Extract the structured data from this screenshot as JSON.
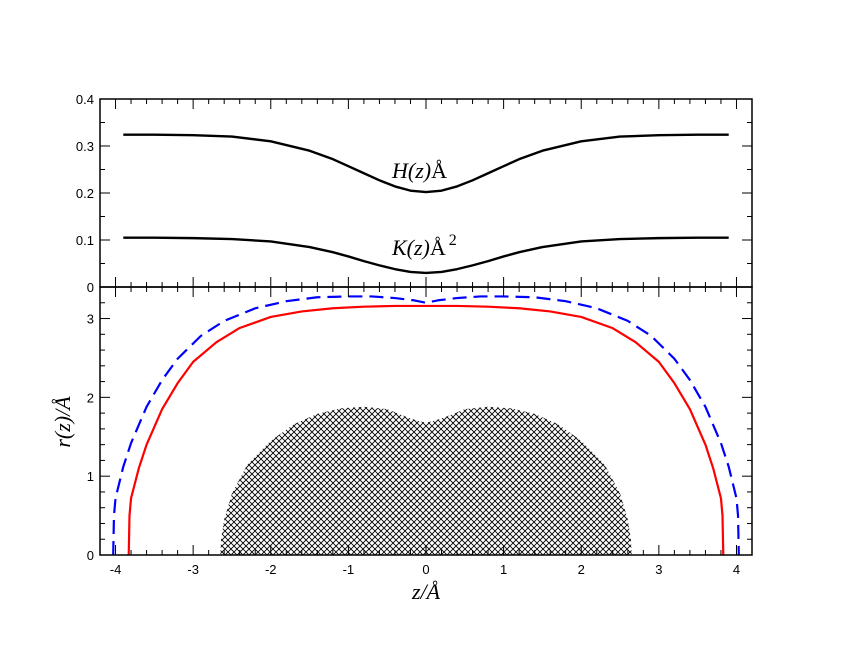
{
  "chart_data": [
    {
      "type": "line",
      "panel": "top",
      "xlim": [
        -4.2,
        4.2
      ],
      "ylim": [
        0,
        0.4
      ],
      "y_ticks": [
        "0",
        "0.1",
        "0.2",
        "0.3",
        "0.4"
      ],
      "grid": false,
      "series": [
        {
          "name": "H(z)Å",
          "label_text": "H(z)",
          "label_unit": "Å",
          "color": "#000000",
          "style": "solid",
          "x": [
            -3.9,
            -3.5,
            -3.0,
            -2.5,
            -2.0,
            -1.5,
            -1.2,
            -1.0,
            -0.8,
            -0.6,
            -0.4,
            -0.2,
            0.0,
            0.2,
            0.4,
            0.6,
            0.8,
            1.0,
            1.2,
            1.5,
            2.0,
            2.5,
            3.0,
            3.5,
            3.9
          ],
          "y": [
            0.324,
            0.324,
            0.323,
            0.32,
            0.31,
            0.29,
            0.272,
            0.257,
            0.242,
            0.227,
            0.214,
            0.205,
            0.202,
            0.205,
            0.214,
            0.227,
            0.242,
            0.257,
            0.272,
            0.29,
            0.31,
            0.32,
            0.323,
            0.324,
            0.324
          ]
        },
        {
          "name": "K(z)Å2",
          "label_text": "K(z)",
          "label_unit": "Å",
          "label_sup": "2",
          "color": "#000000",
          "style": "solid",
          "x": [
            -3.9,
            -3.5,
            -3.0,
            -2.5,
            -2.0,
            -1.5,
            -1.2,
            -1.0,
            -0.8,
            -0.6,
            -0.4,
            -0.2,
            0.0,
            0.2,
            0.4,
            0.6,
            0.8,
            1.0,
            1.2,
            1.5,
            2.0,
            2.5,
            3.0,
            3.5,
            3.9
          ],
          "y": [
            0.105,
            0.105,
            0.104,
            0.102,
            0.097,
            0.085,
            0.074,
            0.065,
            0.055,
            0.046,
            0.038,
            0.032,
            0.03,
            0.032,
            0.038,
            0.046,
            0.055,
            0.065,
            0.074,
            0.085,
            0.097,
            0.102,
            0.104,
            0.105,
            0.105
          ]
        }
      ]
    },
    {
      "type": "line",
      "panel": "bottom",
      "xlabel": "z/Å",
      "ylabel": "r(z)/Å",
      "xlim": [
        -4.2,
        4.2
      ],
      "ylim": [
        0,
        3.4
      ],
      "x_ticks": [
        "-4",
        "-3",
        "-2",
        "-1",
        "0",
        "1",
        "2",
        "3",
        "4"
      ],
      "y_ticks": [
        "0",
        "1",
        "2",
        "3"
      ],
      "grid": false,
      "series": [
        {
          "color": "#ff0000",
          "style": "solid",
          "x": [
            -3.83,
            -3.82,
            -3.8,
            -3.7,
            -3.6,
            -3.4,
            -3.2,
            -3.0,
            -2.7,
            -2.4,
            -2.0,
            -1.6,
            -1.2,
            -0.8,
            -0.4,
            0.0,
            0.4,
            0.8,
            1.2,
            1.6,
            2.0,
            2.4,
            2.7,
            3.0,
            3.2,
            3.4,
            3.6,
            3.7,
            3.8,
            3.82,
            3.83
          ],
          "y": [
            0.0,
            0.5,
            0.72,
            1.1,
            1.4,
            1.85,
            2.18,
            2.45,
            2.7,
            2.88,
            3.02,
            3.09,
            3.13,
            3.15,
            3.16,
            3.16,
            3.16,
            3.15,
            3.13,
            3.09,
            3.02,
            2.88,
            2.7,
            2.45,
            2.18,
            1.85,
            1.4,
            1.1,
            0.72,
            0.5,
            0.0
          ]
        },
        {
          "color": "#0000ff",
          "style": "dashed",
          "x": [
            -4.03,
            -4.02,
            -4.0,
            -3.9,
            -3.8,
            -3.6,
            -3.4,
            -3.2,
            -2.9,
            -2.6,
            -2.2,
            -1.8,
            -1.4,
            -1.0,
            -0.7,
            -0.4,
            -0.15,
            0.0,
            0.15,
            0.4,
            0.7,
            1.0,
            1.4,
            1.8,
            2.2,
            2.6,
            2.9,
            3.2,
            3.4,
            3.6,
            3.8,
            3.9,
            4.0,
            4.02,
            4.03
          ],
          "y": [
            0.0,
            0.5,
            0.72,
            1.12,
            1.42,
            1.88,
            2.22,
            2.49,
            2.78,
            2.97,
            3.13,
            3.22,
            3.27,
            3.28,
            3.28,
            3.26,
            3.23,
            3.2,
            3.23,
            3.26,
            3.28,
            3.28,
            3.27,
            3.22,
            3.13,
            2.97,
            2.78,
            2.49,
            2.22,
            1.88,
            1.42,
            1.12,
            0.72,
            0.5,
            0.0
          ]
        },
        {
          "type": "area",
          "fill": "crosshatch",
          "color": "#000000",
          "x": [
            -2.65,
            -2.64,
            -2.6,
            -2.5,
            -2.3,
            -2.0,
            -1.7,
            -1.4,
            -1.1,
            -0.8,
            -0.5,
            -0.25,
            -0.1,
            0.0,
            0.1,
            0.25,
            0.5,
            0.8,
            1.1,
            1.4,
            1.7,
            2.0,
            2.3,
            2.5,
            2.6,
            2.64,
            2.65
          ],
          "y": [
            0.0,
            0.2,
            0.45,
            0.78,
            1.15,
            1.45,
            1.66,
            1.79,
            1.86,
            1.88,
            1.85,
            1.75,
            1.7,
            1.68,
            1.7,
            1.75,
            1.85,
            1.88,
            1.86,
            1.79,
            1.66,
            1.45,
            1.15,
            0.78,
            0.45,
            0.2,
            0.0
          ]
        }
      ]
    }
  ]
}
